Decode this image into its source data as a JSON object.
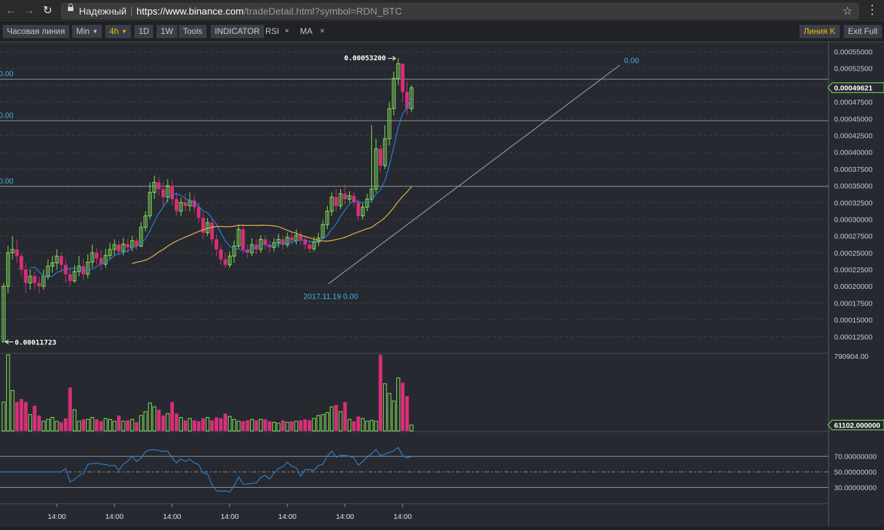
{
  "browser": {
    "secure_label": "Надежный",
    "url_host": "https://www.binance.com",
    "url_path": "/tradeDetail.html?symbol=RDN_BTC"
  },
  "toolbar": {
    "time_line": "Часовая линия",
    "min": "Min",
    "interval": "4h",
    "d1": "1D",
    "w1": "1W",
    "tools": "Tools",
    "indicator": "INDICATOR",
    "rsi": "RSI",
    "ma": "MA",
    "close_glyph": "×",
    "line_k": "Линия K",
    "exit_full": "Exit Full"
  },
  "colors": {
    "up": "#87e35b",
    "down": "#d92e79",
    "ma_fast": "#2b7fd4",
    "ma_slow": "#f0b44a",
    "fib": "#3fb4e6",
    "grid": "#3a4048",
    "accent": "#f0b90b"
  },
  "chart_data": [
    {
      "type": "candlestick",
      "panel": "price",
      "y_ticks": [
        "0.00055000",
        "0.00052500",
        "0.00050000",
        "0.00047500",
        "0.00045000",
        "0.00042500",
        "0.00040000",
        "0.00037500",
        "0.00035000",
        "0.00032500",
        "0.00030000",
        "0.00027500",
        "0.00025000",
        "0.00022500",
        "0.00020000",
        "0.00017500",
        "0.00015000",
        "0.00012500"
      ],
      "ylim": [
        0.0001,
        0.000565
      ],
      "current_price": "0.00049621",
      "high_label": "0.00053200",
      "low_label": "0.00011723",
      "x_ticks": [
        "14:00",
        "14:00",
        "14:00",
        "14:00",
        "14:00",
        "14:00",
        "14:00"
      ],
      "fib_labels": [
        "0.00",
        "0.00",
        "0.00"
      ],
      "fib_levels": [
        0.000509,
        0.000447,
        0.000349
      ],
      "trendline_label": "0.00",
      "trendline": [
        [
          72,
          0.000245
        ],
        [
          139,
          0.00053
        ]
      ],
      "date_label": "2017.11.19 0.00",
      "candles": [
        [
          0.000117,
          0.0002,
          0.000117,
          0.000205
        ],
        [
          0.0002,
          0.00025,
          0.00019,
          0.00026
        ],
        [
          0.00025,
          0.000255,
          0.00024,
          0.000275
        ],
        [
          0.000255,
          0.000245,
          0.000235,
          0.00027
        ],
        [
          0.000245,
          0.000225,
          0.000215,
          0.00025
        ],
        [
          0.000225,
          0.000205,
          0.00019,
          0.000235
        ],
        [
          0.000205,
          0.000215,
          0.000195,
          0.000225
        ],
        [
          0.000215,
          0.000205,
          0.000195,
          0.000222
        ],
        [
          0.000205,
          0.0002,
          0.00019,
          0.000215
        ],
        [
          0.0002,
          0.000215,
          0.000195,
          0.000225
        ],
        [
          0.000215,
          0.00023,
          0.00021,
          0.00024
        ],
        [
          0.00023,
          0.000235,
          0.00022,
          0.000245
        ],
        [
          0.000235,
          0.000245,
          0.000225,
          0.000255
        ],
        [
          0.000245,
          0.000232,
          0.00022,
          0.00025
        ],
        [
          0.000232,
          0.000218,
          0.000205,
          0.00024
        ],
        [
          0.000218,
          0.000208,
          0.0002,
          0.000228
        ],
        [
          0.000208,
          0.000222,
          0.000205,
          0.000232
        ],
        [
          0.000222,
          0.00023,
          0.000215,
          0.000245
        ],
        [
          0.00023,
          0.000218,
          0.00021,
          0.00024
        ],
        [
          0.000218,
          0.000236,
          0.000212,
          0.000248
        ],
        [
          0.000236,
          0.00025,
          0.000228,
          0.000262
        ],
        [
          0.00025,
          0.000242,
          0.000232,
          0.000258
        ],
        [
          0.000242,
          0.000233,
          0.000225,
          0.000255
        ],
        [
          0.000233,
          0.000246,
          0.000228,
          0.000256
        ],
        [
          0.000246,
          0.000255,
          0.00024,
          0.000265
        ],
        [
          0.000255,
          0.000262,
          0.000245,
          0.00027
        ],
        [
          0.000262,
          0.000252,
          0.000245,
          0.000268
        ],
        [
          0.000252,
          0.000263,
          0.000246,
          0.000272
        ],
        [
          0.000263,
          0.000258,
          0.00025,
          0.00027
        ],
        [
          0.000258,
          0.000268,
          0.000252,
          0.000275
        ],
        [
          0.000268,
          0.00026,
          0.000254,
          0.000272
        ],
        [
          0.00026,
          0.000288,
          0.000258,
          0.000296
        ],
        [
          0.000288,
          0.000305,
          0.000282,
          0.000312
        ],
        [
          0.000305,
          0.00034,
          0.0003,
          0.000355
        ],
        [
          0.00034,
          0.000355,
          0.00033,
          0.000365
        ],
        [
          0.000355,
          0.000345,
          0.000335,
          0.000362
        ],
        [
          0.000345,
          0.000333,
          0.00032,
          0.000355
        ],
        [
          0.000333,
          0.00035,
          0.000325,
          0.00036
        ],
        [
          0.00035,
          0.00033,
          0.00032,
          0.000358
        ],
        [
          0.00033,
          0.000312,
          0.000305,
          0.00034
        ],
        [
          0.000312,
          0.000325,
          0.000305,
          0.000332
        ],
        [
          0.000325,
          0.00032,
          0.000312,
          0.000338
        ],
        [
          0.00032,
          0.000328,
          0.000312,
          0.00034
        ],
        [
          0.000328,
          0.000318,
          0.00031,
          0.000335
        ],
        [
          0.000318,
          0.000302,
          0.000295,
          0.000325
        ],
        [
          0.000302,
          0.00028,
          0.00027,
          0.00031
        ],
        [
          0.00028,
          0.000295,
          0.000275,
          0.000302
        ],
        [
          0.000295,
          0.00027,
          0.000262,
          0.0003
        ],
        [
          0.00027,
          0.000255,
          0.000245,
          0.000278
        ],
        [
          0.000255,
          0.00024,
          0.000232,
          0.000262
        ],
        [
          0.00024,
          0.000232,
          0.000228,
          0.00025
        ],
        [
          0.000232,
          0.000245,
          0.000228,
          0.000252
        ],
        [
          0.000245,
          0.00026,
          0.000235,
          0.000268
        ],
        [
          0.00026,
          0.000285,
          0.000255,
          0.000292
        ],
        [
          0.000285,
          0.000255,
          0.000248,
          0.00029
        ],
        [
          0.000255,
          0.00025,
          0.000242,
          0.000262
        ],
        [
          0.00025,
          0.000262,
          0.000245,
          0.000272
        ],
        [
          0.000262,
          0.000255,
          0.000248,
          0.00027
        ],
        [
          0.000255,
          0.00027,
          0.00025,
          0.000276
        ],
        [
          0.00027,
          0.000262,
          0.000255,
          0.000276
        ],
        [
          0.000262,
          0.000258,
          0.00025,
          0.000268
        ],
        [
          0.000258,
          0.000265,
          0.000252,
          0.000272
        ],
        [
          0.000265,
          0.00027,
          0.000258,
          0.000278
        ],
        [
          0.00027,
          0.000262,
          0.000255,
          0.000275
        ],
        [
          0.000262,
          0.000273,
          0.000258,
          0.00028
        ],
        [
          0.000273,
          0.000268,
          0.000262,
          0.000282
        ],
        [
          0.000268,
          0.000276,
          0.000262,
          0.000285
        ],
        [
          0.000276,
          0.00027,
          0.000262,
          0.000282
        ],
        [
          0.00027,
          0.000262,
          0.000255,
          0.000275
        ],
        [
          0.000262,
          0.000256,
          0.00025,
          0.000268
        ],
        [
          0.000256,
          0.000266,
          0.000252,
          0.000274
        ],
        [
          0.000266,
          0.000272,
          0.00026,
          0.00028
        ],
        [
          0.000272,
          0.000292,
          0.00027,
          0.000298
        ],
        [
          0.000292,
          0.000312,
          0.000285,
          0.00032
        ],
        [
          0.000312,
          0.000333,
          0.000305,
          0.00034
        ],
        [
          0.000333,
          0.00032,
          0.000312,
          0.000345
        ],
        [
          0.00032,
          0.000338,
          0.000315,
          0.000345
        ],
        [
          0.000338,
          0.00033,
          0.000322,
          0.000352
        ],
        [
          0.00033,
          0.000335,
          0.000325,
          0.000342
        ],
        [
          0.000335,
          0.000325,
          0.000318,
          0.00034
        ],
        [
          0.000325,
          0.000305,
          0.000298,
          0.00033
        ],
        [
          0.000305,
          0.000318,
          0.0003,
          0.000325
        ],
        [
          0.000318,
          0.00033,
          0.000312,
          0.000338
        ],
        [
          0.00033,
          0.000345,
          0.000325,
          0.00044
        ],
        [
          0.000345,
          0.000405,
          0.00034,
          0.00042
        ],
        [
          0.000405,
          0.00038,
          0.00037,
          0.00041
        ],
        [
          0.00038,
          0.00042,
          0.000375,
          0.00044
        ],
        [
          0.00042,
          0.000465,
          0.00041,
          0.000475
        ],
        [
          0.000465,
          0.00051,
          0.000455,
          0.00052
        ],
        [
          0.00051,
          0.000532,
          0.0005,
          0.00054
        ],
        [
          0.000532,
          0.00049,
          0.000475,
          0.000532
        ],
        [
          0.00049,
          0.000465,
          0.000455,
          0.000505
        ],
        [
          0.000465,
          0.000496,
          0.00046,
          0.0005
        ]
      ]
    },
    {
      "type": "bar",
      "panel": "volume",
      "y_ticks": [
        "790904.00"
      ],
      "current_volume": "61102.000000",
      "values": [
        300000,
        790000,
        420000,
        300000,
        330000,
        300000,
        170000,
        260000,
        160000,
        100000,
        120000,
        140000,
        100000,
        90000,
        130000,
        450000,
        220000,
        100000,
        120000,
        120000,
        140000,
        120000,
        100000,
        130000,
        120000,
        100000,
        160000,
        100000,
        110000,
        120000,
        90000,
        160000,
        200000,
        290000,
        250000,
        220000,
        160000,
        180000,
        300000,
        180000,
        140000,
        110000,
        130000,
        110000,
        100000,
        130000,
        140000,
        110000,
        140000,
        130000,
        180000,
        150000,
        120000,
        100000,
        100000,
        110000,
        120000,
        110000,
        120000,
        120000,
        100000,
        90000,
        80000,
        110000,
        90000,
        100000,
        100000,
        110000,
        120000,
        110000,
        130000,
        160000,
        170000,
        190000,
        250000,
        270000,
        200000,
        300000,
        120000,
        100000,
        150000,
        130000,
        100000,
        110000,
        100000,
        790000,
        490000,
        390000,
        310000,
        550000,
        500000,
        360000,
        61102
      ]
    },
    {
      "type": "line",
      "panel": "rsi",
      "y_ticks": [
        "70.00000000",
        "50.00000000",
        "30.00000000"
      ],
      "ylim": [
        10,
        100
      ]
    }
  ]
}
